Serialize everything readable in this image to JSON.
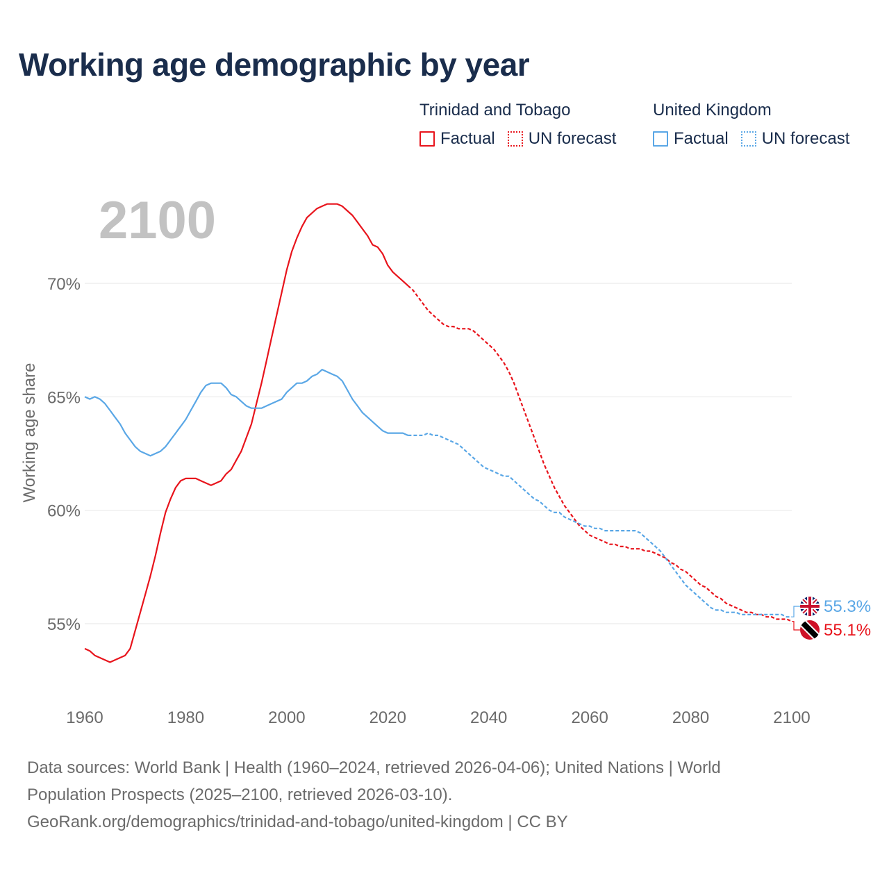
{
  "title": "Working age demographic by year",
  "legend": {
    "groups": [
      {
        "name": "Trinidad and Tobago",
        "color": "#e8141c",
        "items": [
          {
            "label": "Factual",
            "style": "solid"
          },
          {
            "label": "UN forecast",
            "style": "dotted"
          }
        ]
      },
      {
        "name": "United Kingdom",
        "color": "#5aa7e6",
        "items": [
          {
            "label": "Factual",
            "style": "solid"
          },
          {
            "label": "UN forecast",
            "style": "dotted"
          }
        ]
      }
    ]
  },
  "footer": {
    "line1": "Data sources: World Bank | Health (1960–2024, retrieved 2026-04-06); United Nations | World",
    "line2": "Population Prospects (2025–2100, retrieved 2026-03-10).",
    "line3": "GeoRank.org/demographics/trinidad-and-tobago/united-kingdom | CC BY"
  },
  "chart_data": {
    "type": "line",
    "title": "Working age demographic by year",
    "year_watermark": "2100",
    "xlabel": "",
    "ylabel": "Working age share",
    "xlim": [
      1960,
      2100
    ],
    "ylim": [
      52.5,
      74.5
    ],
    "x_ticks": [
      1960,
      1980,
      2000,
      2020,
      2040,
      2060,
      2080,
      2100
    ],
    "y_ticks": [
      55,
      60,
      65,
      70
    ],
    "y_tick_labels": [
      "55%",
      "60%",
      "65%",
      "70%"
    ],
    "grid": true,
    "factual_until": 2024,
    "series": [
      {
        "name": "Trinidad and Tobago",
        "color": "#e8141c",
        "end_label": "55.1%",
        "flag_icon": "trinidad-and-tobago-flag-icon",
        "points": [
          [
            1960,
            53.9
          ],
          [
            1961,
            53.8
          ],
          [
            1962,
            53.6
          ],
          [
            1963,
            53.5
          ],
          [
            1964,
            53.4
          ],
          [
            1965,
            53.3
          ],
          [
            1966,
            53.4
          ],
          [
            1967,
            53.5
          ],
          [
            1968,
            53.6
          ],
          [
            1969,
            53.9
          ],
          [
            1970,
            54.7
          ],
          [
            1971,
            55.5
          ],
          [
            1972,
            56.3
          ],
          [
            1973,
            57.1
          ],
          [
            1974,
            58.0
          ],
          [
            1975,
            59.0
          ],
          [
            1976,
            59.9
          ],
          [
            1977,
            60.5
          ],
          [
            1978,
            61.0
          ],
          [
            1979,
            61.3
          ],
          [
            1980,
            61.4
          ],
          [
            1981,
            61.4
          ],
          [
            1982,
            61.4
          ],
          [
            1983,
            61.3
          ],
          [
            1984,
            61.2
          ],
          [
            1985,
            61.1
          ],
          [
            1986,
            61.2
          ],
          [
            1987,
            61.3
          ],
          [
            1988,
            61.6
          ],
          [
            1989,
            61.8
          ],
          [
            1990,
            62.2
          ],
          [
            1991,
            62.6
          ],
          [
            1992,
            63.2
          ],
          [
            1993,
            63.8
          ],
          [
            1994,
            64.7
          ],
          [
            1995,
            65.6
          ],
          [
            1996,
            66.6
          ],
          [
            1997,
            67.6
          ],
          [
            1998,
            68.6
          ],
          [
            1999,
            69.6
          ],
          [
            2000,
            70.6
          ],
          [
            2001,
            71.4
          ],
          [
            2002,
            72.0
          ],
          [
            2003,
            72.5
          ],
          [
            2004,
            72.9
          ],
          [
            2005,
            73.1
          ],
          [
            2006,
            73.3
          ],
          [
            2007,
            73.4
          ],
          [
            2008,
            73.5
          ],
          [
            2009,
            73.5
          ],
          [
            2010,
            73.5
          ],
          [
            2011,
            73.4
          ],
          [
            2012,
            73.2
          ],
          [
            2013,
            73.0
          ],
          [
            2014,
            72.7
          ],
          [
            2015,
            72.4
          ],
          [
            2016,
            72.1
          ],
          [
            2017,
            71.7
          ],
          [
            2018,
            71.6
          ],
          [
            2019,
            71.3
          ],
          [
            2020,
            70.8
          ],
          [
            2021,
            70.5
          ],
          [
            2022,
            70.3
          ],
          [
            2023,
            70.1
          ],
          [
            2024,
            69.9
          ],
          [
            2025,
            69.7
          ],
          [
            2026,
            69.4
          ],
          [
            2027,
            69.1
          ],
          [
            2028,
            68.8
          ],
          [
            2029,
            68.6
          ],
          [
            2030,
            68.4
          ],
          [
            2031,
            68.2
          ],
          [
            2032,
            68.1
          ],
          [
            2033,
            68.1
          ],
          [
            2034,
            68.0
          ],
          [
            2035,
            68.0
          ],
          [
            2036,
            68.0
          ],
          [
            2037,
            67.9
          ],
          [
            2038,
            67.7
          ],
          [
            2039,
            67.5
          ],
          [
            2040,
            67.3
          ],
          [
            2041,
            67.1
          ],
          [
            2042,
            66.8
          ],
          [
            2043,
            66.5
          ],
          [
            2044,
            66.1
          ],
          [
            2045,
            65.6
          ],
          [
            2046,
            65.0
          ],
          [
            2047,
            64.4
          ],
          [
            2048,
            63.8
          ],
          [
            2049,
            63.2
          ],
          [
            2050,
            62.6
          ],
          [
            2051,
            62.0
          ],
          [
            2052,
            61.5
          ],
          [
            2053,
            61.0
          ],
          [
            2054,
            60.6
          ],
          [
            2055,
            60.2
          ],
          [
            2056,
            59.9
          ],
          [
            2057,
            59.6
          ],
          [
            2058,
            59.3
          ],
          [
            2059,
            59.1
          ],
          [
            2060,
            58.9
          ],
          [
            2061,
            58.8
          ],
          [
            2062,
            58.7
          ],
          [
            2063,
            58.6
          ],
          [
            2064,
            58.5
          ],
          [
            2065,
            58.5
          ],
          [
            2066,
            58.4
          ],
          [
            2067,
            58.4
          ],
          [
            2068,
            58.3
          ],
          [
            2069,
            58.3
          ],
          [
            2070,
            58.3
          ],
          [
            2071,
            58.2
          ],
          [
            2072,
            58.2
          ],
          [
            2073,
            58.1
          ],
          [
            2074,
            58.0
          ],
          [
            2075,
            57.9
          ],
          [
            2076,
            57.7
          ],
          [
            2077,
            57.6
          ],
          [
            2078,
            57.4
          ],
          [
            2079,
            57.3
          ],
          [
            2080,
            57.1
          ],
          [
            2081,
            56.9
          ],
          [
            2082,
            56.7
          ],
          [
            2083,
            56.6
          ],
          [
            2084,
            56.4
          ],
          [
            2085,
            56.2
          ],
          [
            2086,
            56.1
          ],
          [
            2087,
            55.9
          ],
          [
            2088,
            55.8
          ],
          [
            2089,
            55.7
          ],
          [
            2090,
            55.6
          ],
          [
            2091,
            55.5
          ],
          [
            2092,
            55.5
          ],
          [
            2093,
            55.4
          ],
          [
            2094,
            55.4
          ],
          [
            2095,
            55.3
          ],
          [
            2096,
            55.3
          ],
          [
            2097,
            55.2
          ],
          [
            2098,
            55.2
          ],
          [
            2099,
            55.2
          ],
          [
            2100,
            55.1
          ]
        ]
      },
      {
        "name": "United Kingdom",
        "color": "#5aa7e6",
        "end_label": "55.3%",
        "flag_icon": "united-kingdom-flag-icon",
        "points": [
          [
            1960,
            65.0
          ],
          [
            1961,
            64.9
          ],
          [
            1962,
            65.0
          ],
          [
            1963,
            64.9
          ],
          [
            1964,
            64.7
          ],
          [
            1965,
            64.4
          ],
          [
            1966,
            64.1
          ],
          [
            1967,
            63.8
          ],
          [
            1968,
            63.4
          ],
          [
            1969,
            63.1
          ],
          [
            1970,
            62.8
          ],
          [
            1971,
            62.6
          ],
          [
            1972,
            62.5
          ],
          [
            1973,
            62.4
          ],
          [
            1974,
            62.5
          ],
          [
            1975,
            62.6
          ],
          [
            1976,
            62.8
          ],
          [
            1977,
            63.1
          ],
          [
            1978,
            63.4
          ],
          [
            1979,
            63.7
          ],
          [
            1980,
            64.0
          ],
          [
            1981,
            64.4
          ],
          [
            1982,
            64.8
          ],
          [
            1983,
            65.2
          ],
          [
            1984,
            65.5
          ],
          [
            1985,
            65.6
          ],
          [
            1986,
            65.6
          ],
          [
            1987,
            65.6
          ],
          [
            1988,
            65.4
          ],
          [
            1989,
            65.1
          ],
          [
            1990,
            65.0
          ],
          [
            1991,
            64.8
          ],
          [
            1992,
            64.6
          ],
          [
            1993,
            64.5
          ],
          [
            1994,
            64.5
          ],
          [
            1995,
            64.5
          ],
          [
            1996,
            64.6
          ],
          [
            1997,
            64.7
          ],
          [
            1998,
            64.8
          ],
          [
            1999,
            64.9
          ],
          [
            2000,
            65.2
          ],
          [
            2001,
            65.4
          ],
          [
            2002,
            65.6
          ],
          [
            2003,
            65.6
          ],
          [
            2004,
            65.7
          ],
          [
            2005,
            65.9
          ],
          [
            2006,
            66.0
          ],
          [
            2007,
            66.2
          ],
          [
            2008,
            66.1
          ],
          [
            2009,
            66.0
          ],
          [
            2010,
            65.9
          ],
          [
            2011,
            65.7
          ],
          [
            2012,
            65.3
          ],
          [
            2013,
            64.9
          ],
          [
            2014,
            64.6
          ],
          [
            2015,
            64.3
          ],
          [
            2016,
            64.1
          ],
          [
            2017,
            63.9
          ],
          [
            2018,
            63.7
          ],
          [
            2019,
            63.5
          ],
          [
            2020,
            63.4
          ],
          [
            2021,
            63.4
          ],
          [
            2022,
            63.4
          ],
          [
            2023,
            63.4
          ],
          [
            2024,
            63.3
          ],
          [
            2025,
            63.3
          ],
          [
            2026,
            63.3
          ],
          [
            2027,
            63.3
          ],
          [
            2028,
            63.4
          ],
          [
            2029,
            63.3
          ],
          [
            2030,
            63.3
          ],
          [
            2031,
            63.2
          ],
          [
            2032,
            63.1
          ],
          [
            2033,
            63.0
          ],
          [
            2034,
            62.9
          ],
          [
            2035,
            62.7
          ],
          [
            2036,
            62.5
          ],
          [
            2037,
            62.3
          ],
          [
            2038,
            62.1
          ],
          [
            2039,
            61.9
          ],
          [
            2040,
            61.8
          ],
          [
            2041,
            61.7
          ],
          [
            2042,
            61.6
          ],
          [
            2043,
            61.5
          ],
          [
            2044,
            61.5
          ],
          [
            2045,
            61.3
          ],
          [
            2046,
            61.1
          ],
          [
            2047,
            60.9
          ],
          [
            2048,
            60.7
          ],
          [
            2049,
            60.5
          ],
          [
            2050,
            60.4
          ],
          [
            2051,
            60.2
          ],
          [
            2052,
            60.0
          ],
          [
            2053,
            59.9
          ],
          [
            2054,
            59.9
          ],
          [
            2055,
            59.7
          ],
          [
            2056,
            59.6
          ],
          [
            2057,
            59.5
          ],
          [
            2058,
            59.4
          ],
          [
            2059,
            59.3
          ],
          [
            2060,
            59.3
          ],
          [
            2061,
            59.2
          ],
          [
            2062,
            59.2
          ],
          [
            2063,
            59.1
          ],
          [
            2064,
            59.1
          ],
          [
            2065,
            59.1
          ],
          [
            2066,
            59.1
          ],
          [
            2067,
            59.1
          ],
          [
            2068,
            59.1
          ],
          [
            2069,
            59.1
          ],
          [
            2070,
            59.0
          ],
          [
            2071,
            58.8
          ],
          [
            2072,
            58.6
          ],
          [
            2073,
            58.4
          ],
          [
            2074,
            58.2
          ],
          [
            2075,
            57.9
          ],
          [
            2076,
            57.6
          ],
          [
            2077,
            57.3
          ],
          [
            2078,
            57.0
          ],
          [
            2079,
            56.7
          ],
          [
            2080,
            56.5
          ],
          [
            2081,
            56.3
          ],
          [
            2082,
            56.1
          ],
          [
            2083,
            55.9
          ],
          [
            2084,
            55.7
          ],
          [
            2085,
            55.6
          ],
          [
            2086,
            55.6
          ],
          [
            2087,
            55.5
          ],
          [
            2088,
            55.5
          ],
          [
            2089,
            55.5
          ],
          [
            2090,
            55.4
          ],
          [
            2091,
            55.4
          ],
          [
            2092,
            55.4
          ],
          [
            2093,
            55.4
          ],
          [
            2094,
            55.4
          ],
          [
            2095,
            55.4
          ],
          [
            2096,
            55.4
          ],
          [
            2097,
            55.4
          ],
          [
            2098,
            55.4
          ],
          [
            2099,
            55.3
          ],
          [
            2100,
            55.3
          ]
        ]
      }
    ]
  }
}
